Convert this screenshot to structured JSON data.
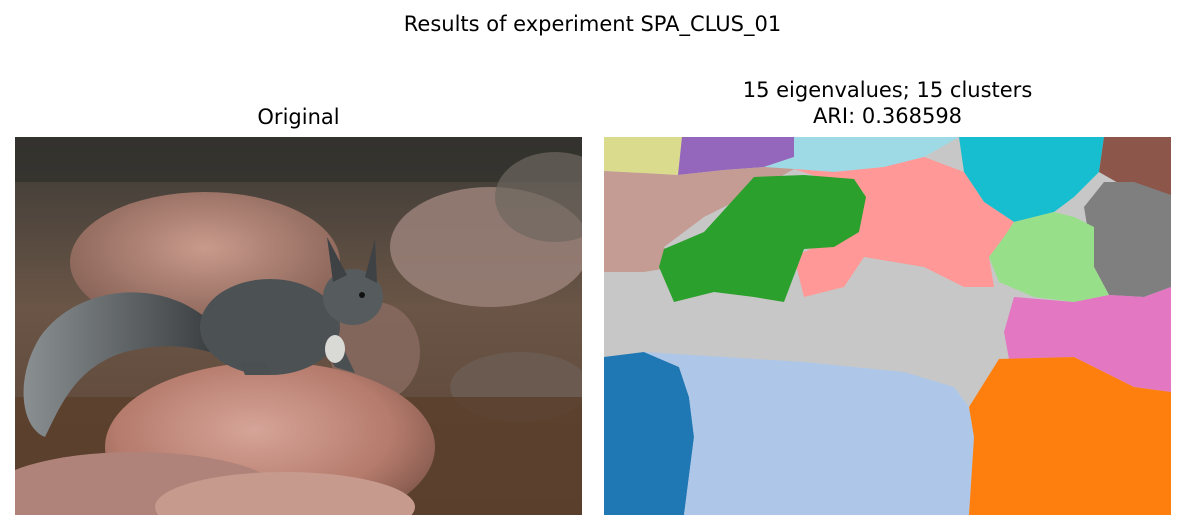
{
  "figure": {
    "suptitle": "Results of experiment SPA_CLUS_01",
    "left_panel": {
      "title": "Original"
    },
    "right_panel": {
      "title_line1": "15 eigenvalues; 15 clusters",
      "title_line2": "ARI: 0.368598"
    }
  },
  "colors": {
    "cluster_palette": [
      "#1f77b4",
      "#aec7e8",
      "#ff7f0e",
      "#2ca02c",
      "#98df8a",
      "#ff9896",
      "#c5b0d5",
      "#c49c94",
      "#e377c2",
      "#7f7f7f",
      "#c7c7c7",
      "#dbdb8d",
      "#17becf",
      "#9edae5",
      "#9467bd",
      "#8c564b"
    ]
  },
  "image_content": {
    "left": "photo-squirrel-on-rock",
    "right": "segmentation-map"
  }
}
